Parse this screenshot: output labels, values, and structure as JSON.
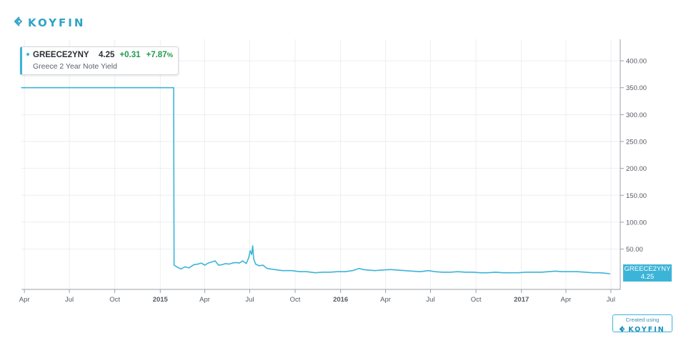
{
  "brand": {
    "name": "KOYFIN",
    "color": "#2fa3c6",
    "icon": "koyfin-diamond-icon"
  },
  "legend": {
    "ticker": "GREECE2YNY",
    "value": "4.25",
    "change": "+0.31",
    "change_pct": "+7.87",
    "pct_symbol": "%",
    "name": "Greece 2 Year Note Yield"
  },
  "price_tag": {
    "ticker": "GREECE2YNY",
    "value": "4.25"
  },
  "credit": {
    "text": "Created using",
    "brand": "KOYFIN"
  },
  "colors": {
    "series": "#3cb4d8",
    "positive": "#1e9b4a",
    "grid": "#eceef1",
    "axis_text": "#555a63"
  },
  "chart_data": {
    "type": "line",
    "title": "",
    "xlabel": "",
    "ylabel": "",
    "grid": true,
    "y_axis_side": "right",
    "ylim": [
      -25,
      440
    ],
    "y_ticks": [
      50,
      100,
      150,
      200,
      250,
      300,
      350,
      400
    ],
    "y_tick_labels": [
      "50.00",
      "100.00",
      "150.00",
      "200.00",
      "250.00",
      "300.00",
      "350.00",
      "400.00"
    ],
    "x_range": [
      "2014-03-26",
      "2017-07-20"
    ],
    "x_ticks": [
      {
        "date": "2014-04-01",
        "label": "Apr",
        "bold": false
      },
      {
        "date": "2014-07-01",
        "label": "Jul",
        "bold": false
      },
      {
        "date": "2014-10-01",
        "label": "Oct",
        "bold": false
      },
      {
        "date": "2015-01-01",
        "label": "2015",
        "bold": true
      },
      {
        "date": "2015-04-01",
        "label": "Apr",
        "bold": false
      },
      {
        "date": "2015-07-01",
        "label": "Jul",
        "bold": false
      },
      {
        "date": "2015-10-01",
        "label": "Oct",
        "bold": false
      },
      {
        "date": "2016-01-01",
        "label": "2016",
        "bold": true
      },
      {
        "date": "2016-04-01",
        "label": "Apr",
        "bold": false
      },
      {
        "date": "2016-07-01",
        "label": "Jul",
        "bold": false
      },
      {
        "date": "2016-10-01",
        "label": "Oct",
        "bold": false
      },
      {
        "date": "2017-01-01",
        "label": "2017",
        "bold": true
      },
      {
        "date": "2017-04-01",
        "label": "Apr",
        "bold": false
      },
      {
        "date": "2017-07-01",
        "label": "Jul",
        "bold": false
      }
    ],
    "series": [
      {
        "points": [
          [
            "2014-03-26",
            350
          ],
          [
            "2014-06-01",
            350
          ],
          [
            "2014-09-01",
            350
          ],
          [
            "2014-12-01",
            350
          ],
          [
            "2015-01-28",
            350
          ],
          [
            "2015-01-29",
            20
          ],
          [
            "2015-02-05",
            16
          ],
          [
            "2015-02-12",
            13
          ],
          [
            "2015-02-20",
            17
          ],
          [
            "2015-02-28",
            15
          ],
          [
            "2015-03-10",
            21
          ],
          [
            "2015-03-18",
            22
          ],
          [
            "2015-03-25",
            24
          ],
          [
            "2015-04-01",
            20
          ],
          [
            "2015-04-08",
            24
          ],
          [
            "2015-04-15",
            26
          ],
          [
            "2015-04-22",
            28
          ],
          [
            "2015-04-29",
            20
          ],
          [
            "2015-05-06",
            21
          ],
          [
            "2015-05-13",
            23
          ],
          [
            "2015-05-20",
            22
          ],
          [
            "2015-05-27",
            24
          ],
          [
            "2015-06-03",
            25
          ],
          [
            "2015-06-10",
            24
          ],
          [
            "2015-06-17",
            28
          ],
          [
            "2015-06-24",
            23
          ],
          [
            "2015-06-29",
            34
          ],
          [
            "2015-07-02",
            47
          ],
          [
            "2015-07-05",
            40
          ],
          [
            "2015-07-07",
            56
          ],
          [
            "2015-07-09",
            32
          ],
          [
            "2015-07-13",
            22
          ],
          [
            "2015-07-20",
            19
          ],
          [
            "2015-07-28",
            20
          ],
          [
            "2015-08-05",
            14
          ],
          [
            "2015-08-20",
            12
          ],
          [
            "2015-09-05",
            10
          ],
          [
            "2015-09-25",
            10
          ],
          [
            "2015-10-10",
            8
          ],
          [
            "2015-10-25",
            8
          ],
          [
            "2015-11-10",
            6
          ],
          [
            "2015-11-25",
            7
          ],
          [
            "2015-12-10",
            7
          ],
          [
            "2015-12-25",
            8
          ],
          [
            "2016-01-10",
            8
          ],
          [
            "2016-01-25",
            10
          ],
          [
            "2016-02-08",
            14
          ],
          [
            "2016-02-15",
            12
          ],
          [
            "2016-02-25",
            11
          ],
          [
            "2016-03-10",
            10
          ],
          [
            "2016-03-25",
            11
          ],
          [
            "2016-04-10",
            12
          ],
          [
            "2016-04-25",
            11
          ],
          [
            "2016-05-10",
            10
          ],
          [
            "2016-05-25",
            9
          ],
          [
            "2016-06-10",
            8
          ],
          [
            "2016-06-27",
            10
          ],
          [
            "2016-07-10",
            8
          ],
          [
            "2016-07-25",
            7
          ],
          [
            "2016-08-10",
            7
          ],
          [
            "2016-08-25",
            8
          ],
          [
            "2016-09-10",
            7
          ],
          [
            "2016-09-25",
            7
          ],
          [
            "2016-10-10",
            6
          ],
          [
            "2016-10-25",
            6
          ],
          [
            "2016-11-10",
            7
          ],
          [
            "2016-11-25",
            6
          ],
          [
            "2016-12-10",
            6
          ],
          [
            "2016-12-25",
            6
          ],
          [
            "2017-01-10",
            7
          ],
          [
            "2017-01-25",
            7
          ],
          [
            "2017-02-10",
            7
          ],
          [
            "2017-02-25",
            8
          ],
          [
            "2017-03-10",
            9
          ],
          [
            "2017-03-25",
            8
          ],
          [
            "2017-04-10",
            8
          ],
          [
            "2017-04-25",
            8
          ],
          [
            "2017-05-10",
            7
          ],
          [
            "2017-05-25",
            6
          ],
          [
            "2017-06-10",
            6
          ],
          [
            "2017-06-20",
            5
          ],
          [
            "2017-06-29",
            4.25
          ]
        ]
      }
    ]
  }
}
